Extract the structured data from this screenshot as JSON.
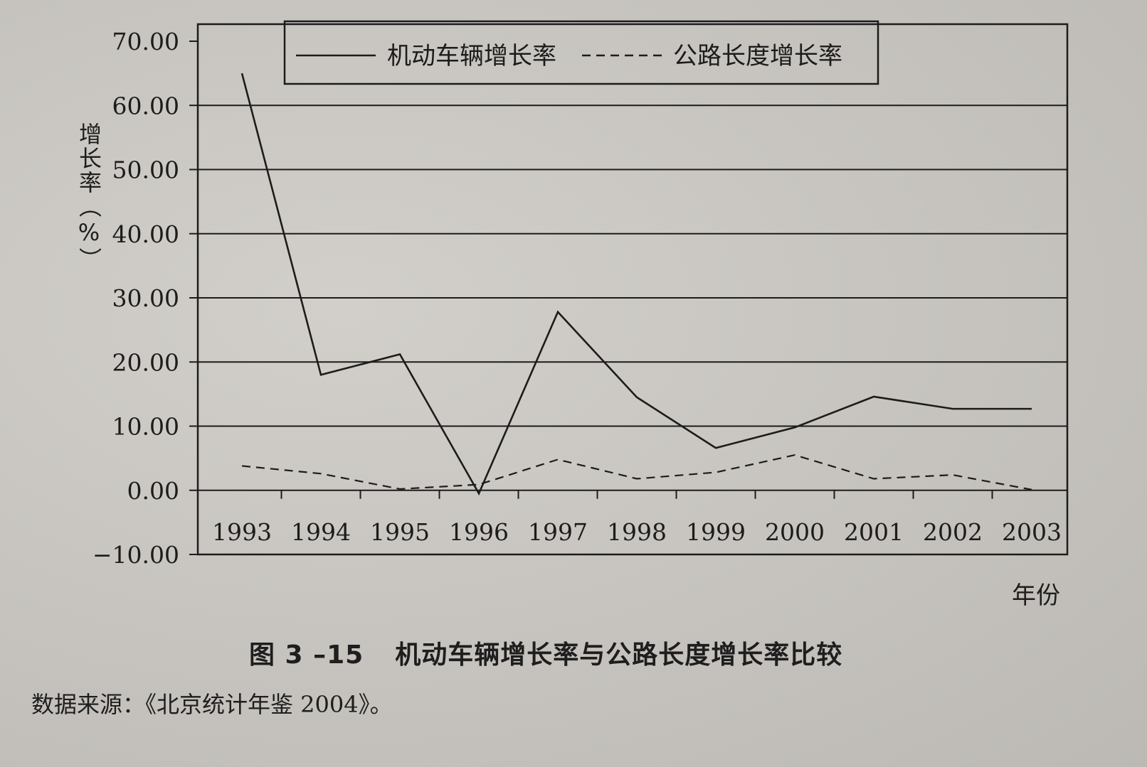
{
  "chart_data": {
    "type": "line",
    "ylabel": "增长率（%）",
    "xlabel": "年份",
    "categories": [
      "1993",
      "1994",
      "1995",
      "1996",
      "1997",
      "1998",
      "1999",
      "2000",
      "2001",
      "2002",
      "2003"
    ],
    "yticks": [
      "70.00",
      "60.00",
      "50.00",
      "40.00",
      "30.00",
      "20.00",
      "10.00",
      "0.00",
      "−10.00"
    ],
    "ylim": [
      -10,
      70
    ],
    "grid": true,
    "legend_position": "top",
    "series": [
      {
        "name": "机动车辆增长率",
        "style": "solid",
        "values": [
          65.0,
          18.0,
          21.2,
          -0.5,
          27.8,
          14.5,
          6.6,
          9.8,
          14.6,
          12.7,
          12.7
        ]
      },
      {
        "name": "公路长度增长率",
        "style": "dashed",
        "values": [
          3.8,
          2.6,
          0.2,
          0.9,
          4.8,
          1.8,
          2.8,
          5.5,
          1.8,
          2.4,
          0.1
        ]
      }
    ]
  },
  "caption": {
    "figure_number": "图 3 –15",
    "title": "机动车辆增长率与公路长度增长率比较"
  },
  "source": "数据来源：《北京统计年鉴 2004》。",
  "colors": {
    "line": "#1c1c1c",
    "background": "#c9c6c1"
  }
}
